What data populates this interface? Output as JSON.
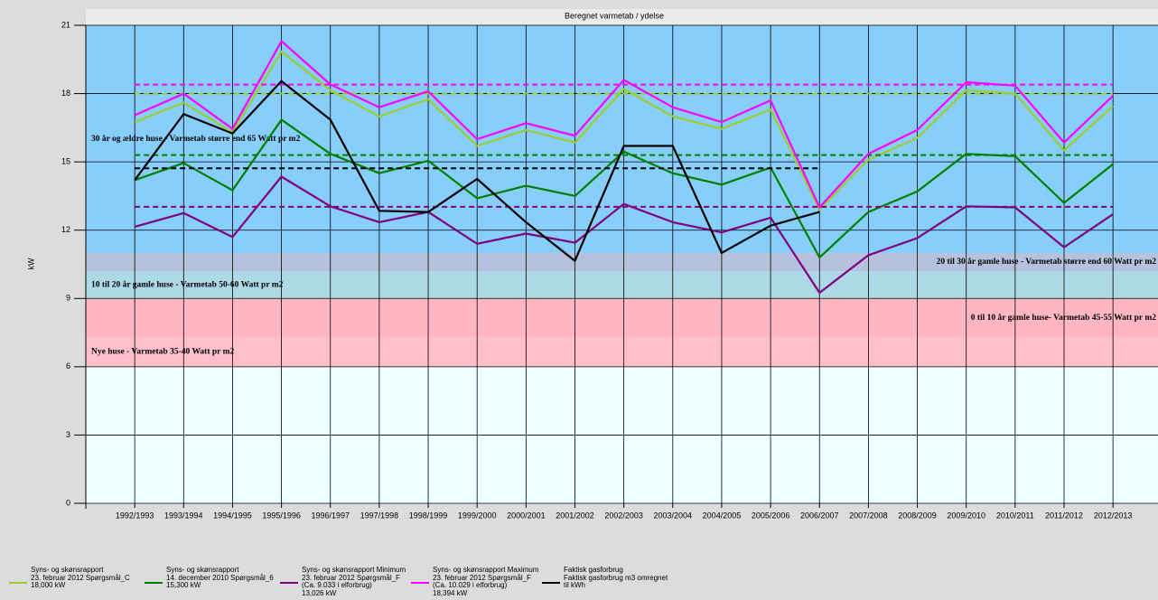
{
  "chart_data": {
    "type": "line",
    "title": "Beregnet varmetab / ydelse",
    "y_label": "kW",
    "categories": [
      "1992/1993",
      "1993/1994",
      "1994/1995",
      "1995/1996",
      "1996/1997",
      "1997/1998",
      "1998/1999",
      "1999/2000",
      "2000/2001",
      "2001/2002",
      "2002/2003",
      "2003/2004",
      "2004/2005",
      "2005/2006",
      "2006/2007",
      "2007/2008",
      "2008/2009",
      "2009/2010",
      "2010/2011",
      "2011/2012",
      "2012/2013"
    ],
    "ylim": [
      0,
      21
    ],
    "yticks": [
      0,
      3,
      6,
      9,
      12,
      15,
      18,
      21
    ],
    "grid": true,
    "bands": [
      {
        "from": 11,
        "to": 21,
        "color": "#87cefa",
        "label": "30 år og ældre huse - Varmetab større end 65 Watt pr m2",
        "align": "left"
      },
      {
        "from": 10.2,
        "to": 11,
        "color": "#b5c1dd",
        "label": "20 til 30 år gamle huse - Varmetab større end 60 Watt pr m2",
        "align": "right"
      },
      {
        "from": 9,
        "to": 10.2,
        "color": "#add8e6",
        "label": "10 til 20 år gamle huse - Varmetab 50-60 Watt pr m2",
        "align": "left"
      },
      {
        "from": 7.3,
        "to": 9,
        "color": "#ffb6c1",
        "label": "0 til 10 år gamle huse- Varmetab 45-55 Watt pr m2",
        "align": "right"
      },
      {
        "from": 6,
        "to": 7.3,
        "color": "#ffc0cb",
        "label": "Nye huse - Varmetab 35-40 Watt pr m2",
        "align": "left"
      },
      {
        "from": 0,
        "to": 6,
        "color": "#f0ffff"
      }
    ],
    "series": [
      {
        "name": "Syns- og skønsrapport\n23. februar 2012 Spørgsmål_C",
        "color": "#9acd32",
        "reference": 18.0,
        "reference_label": "18,000 kW",
        "values": [
          16.75,
          17.6,
          16.3,
          19.85,
          18.15,
          17.0,
          17.75,
          15.7,
          16.4,
          15.85,
          18.2,
          17.0,
          16.45,
          17.3,
          12.9,
          15.1,
          16.05,
          18.15,
          18.0,
          15.5,
          17.45
        ]
      },
      {
        "name": "Syns- og skønsrapport\n14. december 2010 Spørgsmål_6",
        "color": "#008000",
        "reference": 15.3,
        "reference_label": "15,300 kW",
        "values": [
          14.2,
          14.95,
          13.75,
          16.85,
          15.35,
          14.5,
          15.05,
          13.4,
          13.95,
          13.5,
          15.45,
          14.5,
          14.0,
          14.75,
          10.8,
          12.8,
          13.7,
          15.35,
          15.25,
          13.2,
          14.9
        ]
      },
      {
        "name": "Syns- og skønsrapport Minimum\n23. februar 2012 Spørgsmål_F\n(Ca. 9.033 i elforbrug)",
        "color": "#800080",
        "reference": 13.026,
        "reference_label": "13,026 kW",
        "values": [
          12.15,
          12.75,
          11.7,
          14.35,
          13.05,
          12.35,
          12.8,
          11.4,
          11.85,
          11.45,
          13.15,
          12.35,
          11.9,
          12.55,
          9.25,
          10.9,
          11.65,
          13.05,
          13.0,
          11.25,
          12.7
        ]
      },
      {
        "name": "Syns- og skønsrapport Maximum\n23. februar 2012 Spørgsmål_F\n(Ca. 10.029 i elforbrug)",
        "color": "#ff00ff",
        "reference": 18.394,
        "reference_label": "18,394 kW",
        "values": [
          17.05,
          18.0,
          16.45,
          20.3,
          18.4,
          17.4,
          18.1,
          16.0,
          16.7,
          16.15,
          18.6,
          17.4,
          16.75,
          17.7,
          13.0,
          15.35,
          16.4,
          18.5,
          18.35,
          15.85,
          17.9
        ]
      },
      {
        "name": "Faktisk gasforbrug\nFaktisk gasforbrug m3 omregnet\ntil kWh",
        "color": "#000000",
        "reference": 14.72,
        "values": [
          14.2,
          17.1,
          16.25,
          18.55,
          16.85,
          12.85,
          12.8,
          14.25,
          12.35,
          10.65,
          15.7,
          15.7,
          11.0,
          12.2,
          12.8,
          null,
          null,
          null,
          null,
          null,
          null
        ]
      }
    ]
  }
}
